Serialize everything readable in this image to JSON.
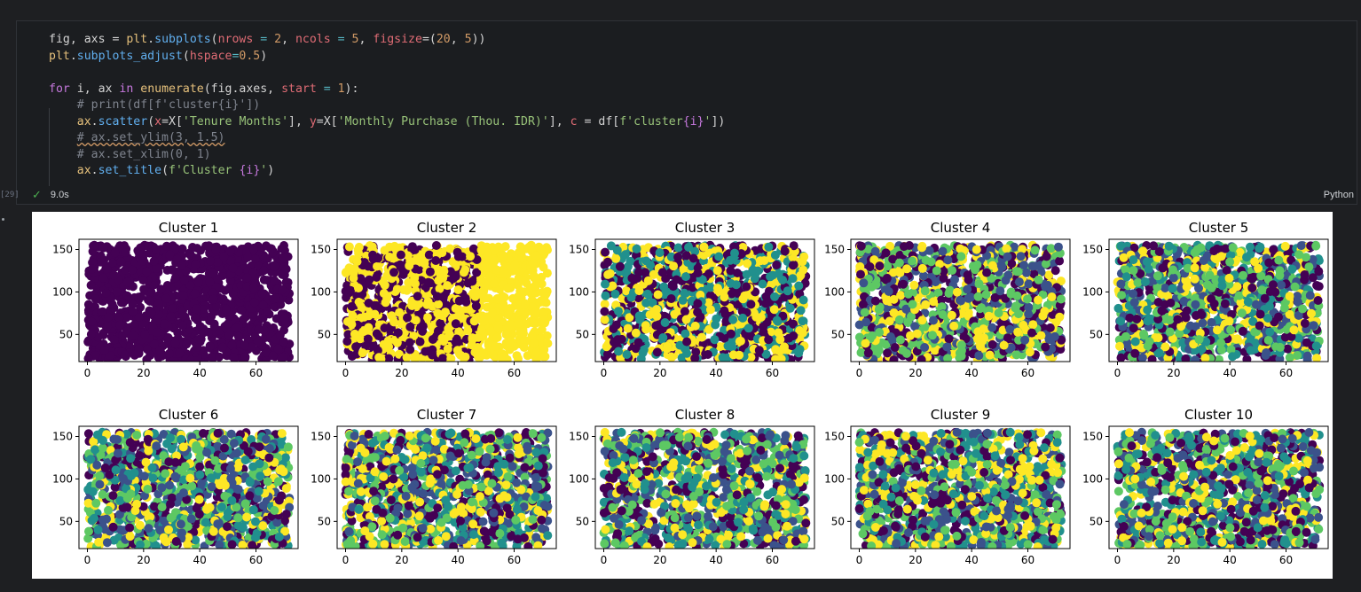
{
  "cell": {
    "execution_count": "[29]",
    "status": "9.0s",
    "language": "Python"
  },
  "code": {
    "line1": [
      "fig, axs = ",
      "plt",
      ".",
      "subplots",
      "(",
      "nrows",
      " = ",
      "2",
      ", ",
      "ncols",
      " = ",
      "5",
      ", ",
      "figsize",
      "=(",
      "20",
      ", ",
      "5",
      "))"
    ],
    "line2": [
      "plt",
      ".",
      "subplots_adjust",
      "(",
      "hspace",
      "=",
      "0.5",
      ")"
    ],
    "line4": [
      "for",
      " i, ax ",
      "in",
      " ",
      "enumerate",
      "(fig.axes, ",
      "start",
      " = ",
      "1",
      "):"
    ],
    "line5": "# print(df[f'cluster{i}'])",
    "line6": [
      "ax",
      ".",
      "scatter",
      "(",
      "x",
      "=X[",
      "'Tenure Months'",
      "], ",
      "y",
      "=X[",
      "'Monthly Purchase (Thou. IDR)'",
      "], ",
      "c",
      " = df[",
      "f'cluster",
      "{i}",
      "'",
      "])"
    ],
    "line7": "# ax.set_ylim(3, 1.5)",
    "line8": "# ax.set_xlim(0, 1)",
    "line9": [
      "ax",
      ".",
      "set_title",
      "(",
      "f'Cluster ",
      "{i}",
      "'",
      ")"
    ]
  },
  "chart_data": {
    "type": "scatter",
    "titles": [
      "Cluster 1",
      "Cluster 2",
      "Cluster 3",
      "Cluster 4",
      "Cluster 5",
      "Cluster 6",
      "Cluster 7",
      "Cluster 8",
      "Cluster 9",
      "Cluster 10"
    ],
    "cluster_counts": [
      1,
      2,
      3,
      4,
      5,
      6,
      7,
      8,
      9,
      10
    ],
    "x_ticks": [
      0,
      20,
      40,
      60
    ],
    "y_ticks": [
      50,
      100,
      150
    ],
    "xlim": [
      -3,
      75
    ],
    "ylim": [
      18,
      162
    ],
    "point_x_range": [
      0,
      72
    ],
    "point_y_range": [
      20,
      155
    ],
    "colormap": [
      "#440154",
      "#3b528b",
      "#21908d",
      "#5dc863",
      "#fde725"
    ]
  }
}
